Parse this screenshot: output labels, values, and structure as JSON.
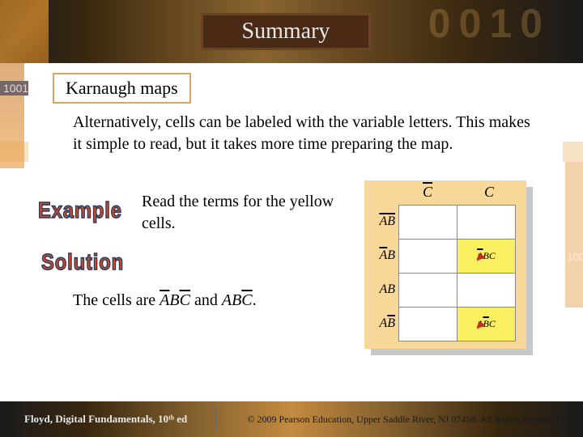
{
  "title": "Summary",
  "section_label": "Karnaugh maps",
  "body_text": "Alternatively, cells can be labeled with the variable letters. This makes it simple to read, but it takes more time preparing the map.",
  "example_label": "Example",
  "solution_label": "Solution",
  "example_text": "Read the terms for the yellow cells.",
  "solution_prefix": "The cells are ",
  "solution_term1_a": "A",
  "solution_term1_b": "B",
  "solution_term1_c": "C",
  "solution_and": "and ",
  "solution_term2_a": "A",
  "solution_term2_b": "B",
  "solution_term2_c": "C",
  "solution_suffix": ".",
  "kmap": {
    "col_headers": [
      "C̄",
      "C"
    ],
    "row_headers": [
      "ĀB̄",
      "ĀB",
      "AB",
      "AB̄"
    ],
    "cells": [
      [
        "",
        ""
      ],
      [
        "",
        "ĀBC"
      ],
      [
        "",
        ""
      ],
      [
        "",
        "AB̄C"
      ]
    ],
    "yellow_cells": [
      [
        1,
        1
      ],
      [
        3,
        1
      ]
    ],
    "bg_color": "#f8d898",
    "yellow_color": "#f8f060",
    "grid_color": "#888888"
  },
  "bg_digits": "0010",
  "bg_side_num_left": "1001",
  "bg_side_num_right": "100",
  "footer": {
    "left": "Floyd, Digital Fundamentals, 10ᵗʰ ed",
    "right": "© 2009 Pearson Education, Upper Saddle River, NJ 07458. All Rights Reserved"
  }
}
